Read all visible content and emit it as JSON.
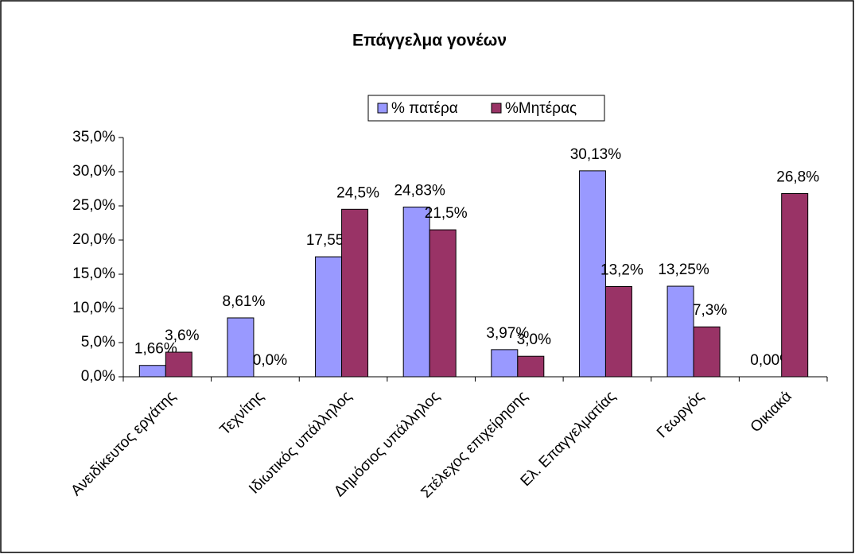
{
  "chart_data": {
    "type": "bar",
    "title": "Επάγγελμα γονέων",
    "categories": [
      "Ανειδίκευτος εργάτης",
      "Τεχνίτης",
      "Ιδιωτικός υπάλληλος",
      "Δημόσιος υπάλληλος",
      "Στέλεχος επιχείρησης",
      "Ελ. Επαγγελματίας",
      "Γεωργός",
      "Οικιακά"
    ],
    "series": [
      {
        "name": "% πατέρα",
        "color": "#9999ff",
        "values": [
          1.66,
          8.61,
          17.55,
          24.83,
          3.97,
          30.13,
          13.25,
          0.0
        ],
        "value_labels": [
          "1,66%",
          "8,61%",
          "17,55%",
          "24,83%",
          "3,97%",
          "30,13%",
          "13,25%",
          "0,00%"
        ]
      },
      {
        "name": "%Μητέρας",
        "color": "#993366",
        "values": [
          3.6,
          0.0,
          24.5,
          21.5,
          3.0,
          13.2,
          7.3,
          26.8
        ],
        "value_labels": [
          "3,6%",
          "0,0%",
          "24,5%",
          "21,5%",
          "3,0%",
          "13,2%",
          "7,3%",
          "26,8%"
        ]
      }
    ],
    "ylim": [
      0,
      35
    ],
    "yticks": [
      {
        "value": 0,
        "label": "0,0%"
      },
      {
        "value": 5,
        "label": "5,0%"
      },
      {
        "value": 10,
        "label": "10,0%"
      },
      {
        "value": 15,
        "label": "15,0%"
      },
      {
        "value": 20,
        "label": "20,0%"
      },
      {
        "value": 25,
        "label": "25,0%"
      },
      {
        "value": 30,
        "label": "30,0%"
      },
      {
        "value": 35,
        "label": "35,0%"
      }
    ],
    "legend": "top",
    "grid": false
  }
}
